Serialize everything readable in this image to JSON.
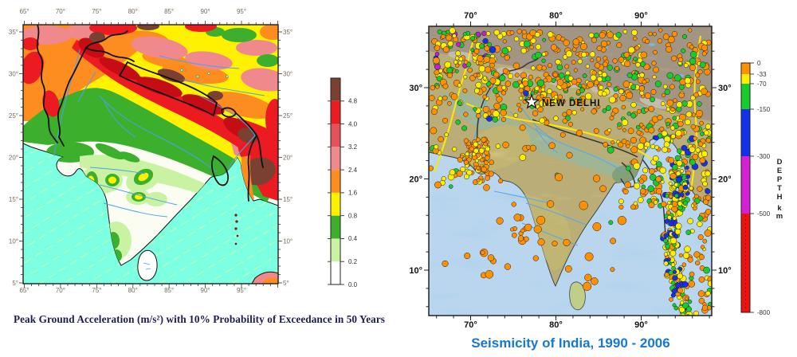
{
  "left_map": {
    "caption": "Peak Ground Acceleration (m/s²) with 10% Probability of Exceedance in 50 Years",
    "caption_color": "#1c1c4e",
    "lon_labels": [
      "65°",
      "70°",
      "75°",
      "80°",
      "85°",
      "90°",
      "95°"
    ],
    "lat_labels": [
      "35°",
      "30°",
      "25°",
      "20°",
      "15°",
      "10°",
      "5°"
    ],
    "colorbar": {
      "labels_top_to_bottom": [
        "4.8",
        "4.0",
        "3.2",
        "2.4",
        "1.6",
        "0.8",
        "0.4",
        "0.2",
        "0.0"
      ],
      "colors_top_to_bottom": [
        "#7a4032",
        "#ec1b22",
        "#e4525c",
        "#f0898b",
        "#fd8d1f",
        "#fff100",
        "#3cb02c",
        "#c9f2a3",
        "#ffffff"
      ]
    },
    "sea_color": "#7dffe2"
  },
  "right_map": {
    "caption": "Seismicity of India, 1990 - 2006",
    "caption_color": "#1778d2",
    "city_label": "NEW DELHI",
    "lon_labels": [
      "70°",
      "80°",
      "90°"
    ],
    "lat_labels": [
      "30°",
      "20°",
      "10°"
    ],
    "depth_legend": {
      "title_letters": "DEPTH",
      "unit": "km",
      "labels_top_to_bottom": [
        "0",
        "-33",
        "-70",
        "-150",
        "-300",
        "-500",
        "-800"
      ],
      "colors_top_to_bottom": [
        "#ff9100",
        "#ffee00",
        "#19cc2e",
        "#1430e8",
        "#d51fd5",
        "#ee1111"
      ]
    },
    "epicenter_colors": {
      "shallow_0_33": "#ff9100",
      "depth_33_70": "#ffee00",
      "depth_70_150": "#19cc2e",
      "depth_150_300": "#1430e8",
      "depth_300_500": "#c21fd1"
    },
    "sea_color": "#a6cbea"
  }
}
